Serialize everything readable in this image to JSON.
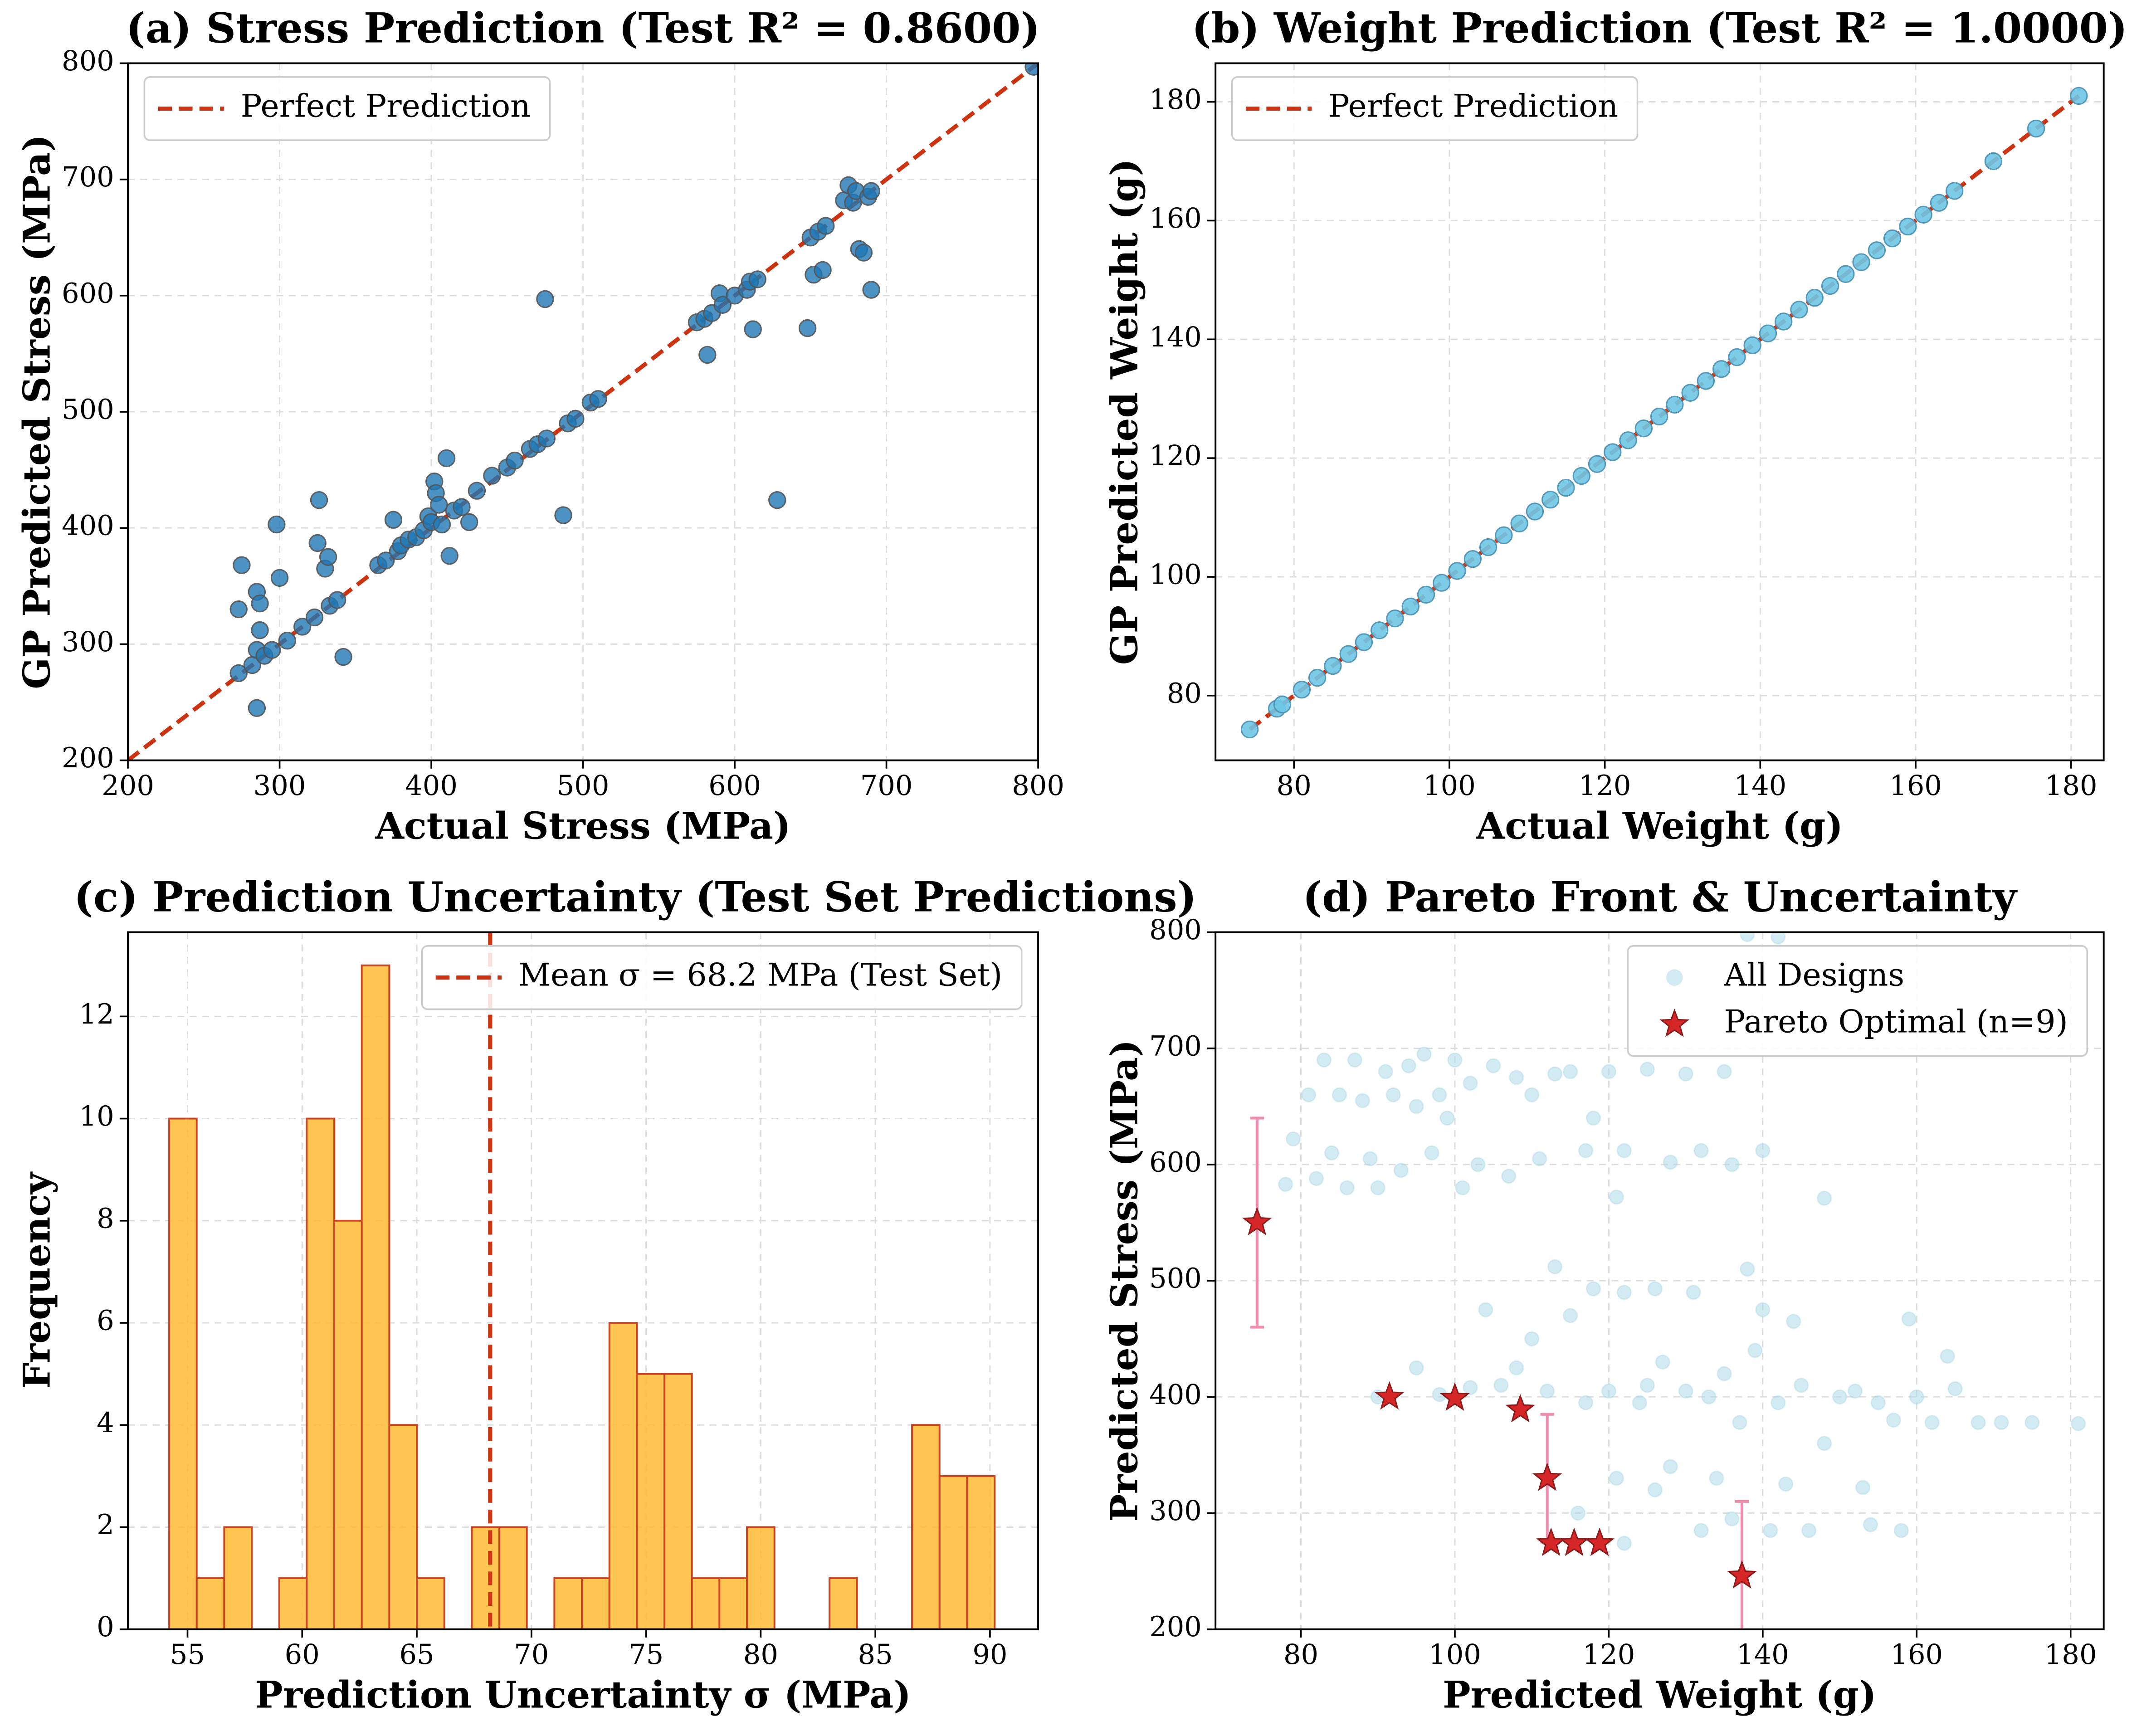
{
  "chart_data": [
    {
      "type": "scatter",
      "title": "(a) Stress Prediction (Test R² = 0.8600)",
      "xlabel": "Actual Stress (MPa)",
      "ylabel": "GP Predicted Stress (MPa)",
      "xlim": [
        200,
        800
      ],
      "ylim": [
        200,
        800
      ],
      "xticks": [
        200,
        300,
        400,
        500,
        600,
        700,
        800
      ],
      "yticks": [
        200,
        300,
        400,
        500,
        600,
        700,
        800
      ],
      "grid": true,
      "legend": "upper left",
      "reference_line": {
        "name": "Perfect Prediction",
        "color": "#cc3311",
        "x": [
          200,
          800
        ],
        "y": [
          200,
          800
        ]
      },
      "series": [
        {
          "color": "#1f77b4",
          "edge_color": "#555555",
          "alpha": 0.8,
          "x": [
            273,
            275,
            273,
            282,
            285,
            287,
            285,
            287,
            285,
            290,
            295,
            298,
            300,
            305,
            315,
            323,
            326,
            325,
            330,
            332,
            333,
            338,
            342,
            365,
            370,
            375,
            378,
            380,
            385,
            390,
            395,
            398,
            400,
            402,
            403,
            405,
            407,
            410,
            412,
            415,
            420,
            425,
            430,
            440,
            450,
            455,
            465,
            470,
            475,
            476,
            487,
            490,
            495,
            505,
            510,
            575,
            580,
            582,
            585,
            590,
            592,
            600,
            608,
            612,
            610,
            615,
            628,
            648,
            650,
            652,
            655,
            658,
            660,
            672,
            675,
            678,
            680,
            682,
            685,
            688,
            690,
            690,
            797
          ],
          "values": [
            275,
            368,
            330,
            282,
            345,
            335,
            295,
            312,
            245,
            290,
            295,
            403,
            357,
            303,
            315,
            323,
            424,
            387,
            365,
            375,
            333,
            338,
            289,
            368,
            372,
            407,
            380,
            385,
            390,
            392,
            398,
            410,
            405,
            440,
            430,
            420,
            403,
            460,
            376,
            415,
            418,
            405,
            432,
            445,
            452,
            458,
            468,
            472,
            597,
            477,
            411,
            490,
            494,
            508,
            511,
            577,
            580,
            549,
            585,
            602,
            592,
            600,
            605,
            571,
            612,
            614,
            424,
            572,
            650,
            618,
            655,
            622,
            660,
            682,
            695,
            680,
            690,
            640,
            637,
            685,
            605,
            690,
            797
          ]
        }
      ]
    },
    {
      "type": "scatter",
      "title": "(b) Weight Prediction (Test R² = 1.0000)",
      "xlabel": "Actual Weight (g)",
      "ylabel": "GP Predicted Weight (g)",
      "xlim": [
        69.9,
        184.2
      ],
      "ylim": [
        69.1,
        186.5
      ],
      "xticks": [
        80,
        100,
        120,
        140,
        160,
        180
      ],
      "yticks": [
        80,
        100,
        120,
        140,
        160,
        180
      ],
      "grid": true,
      "legend": "upper left",
      "reference_line": {
        "name": "Perfect Prediction",
        "color": "#cc3311",
        "x": [
          74.3,
          181
        ],
        "y": [
          74.3,
          181
        ]
      },
      "series": [
        {
          "color": "#6ec6e6",
          "edge_color": "#4a8fb0",
          "alpha": 0.9,
          "x": [
            74.3,
            77.8,
            78.5,
            81,
            83,
            85,
            87,
            89,
            91,
            93,
            95,
            97,
            99,
            101,
            103,
            105,
            107,
            109,
            111,
            113,
            115,
            117,
            119,
            121,
            123,
            125,
            127,
            129,
            131,
            133,
            135,
            137,
            139,
            141,
            143,
            145,
            147,
            149,
            151,
            153,
            155,
            157,
            159,
            161,
            163,
            165,
            170,
            175.5,
            181
          ],
          "values": [
            74.3,
            77.8,
            78.5,
            81,
            83,
            85,
            87,
            89,
            91,
            93,
            95,
            97,
            99,
            101,
            103,
            105,
            107,
            109,
            111,
            113,
            115,
            117,
            119,
            121,
            123,
            125,
            127,
            129,
            131,
            133,
            135,
            137,
            139,
            141,
            143,
            145,
            147,
            149,
            151,
            153,
            155,
            157,
            159,
            161,
            163,
            165,
            170,
            175.5,
            181
          ]
        }
      ]
    },
    {
      "type": "histogram",
      "title": "(c) Prediction Uncertainty (Test Set Predictions)",
      "xlabel": "Prediction Uncertainty σ (MPa)",
      "ylabel": "Frequency",
      "xlim": [
        52.4,
        92.1
      ],
      "ylim": [
        0,
        13.65
      ],
      "xticks": [
        55,
        60,
        65,
        70,
        75,
        80,
        85,
        90
      ],
      "yticks": [
        0,
        2,
        4,
        6,
        8,
        10,
        12
      ],
      "grid": true,
      "legend": "upper right",
      "color": "#ffbb33",
      "edge_color": "#cc4422",
      "bins": [
        54.2,
        55.4,
        56.6,
        57.8,
        59,
        60.2,
        61.4,
        62.6,
        63.8,
        65,
        66.2,
        67.4,
        68.6,
        69.8,
        71,
        72.2,
        73.4,
        74.6,
        75.8,
        77,
        78.2,
        79.4,
        80.6,
        81.8,
        83,
        84.2,
        85.4,
        86.6,
        87.8,
        89,
        90.2
      ],
      "counts": [
        10,
        1,
        2,
        0,
        1,
        10,
        8,
        13,
        4,
        1,
        0,
        2,
        2,
        0,
        1,
        1,
        6,
        5,
        5,
        1,
        1,
        2,
        0,
        0,
        1,
        0,
        0,
        4,
        3,
        3
      ],
      "mean_line": {
        "name": "Mean σ = 68.2 MPa (Test Set)",
        "value": 68.2,
        "color": "#cc3311"
      }
    },
    {
      "type": "scatter",
      "title": "(d) Pareto Front & Uncertainty",
      "xlabel": "Predicted Weight (g)",
      "ylabel": "Predicted Stress (MPa)",
      "xlim": [
        68.9,
        184.3
      ],
      "ylim": [
        200,
        800
      ],
      "xticks": [
        80,
        100,
        120,
        140,
        160,
        180
      ],
      "yticks": [
        200,
        300,
        400,
        500,
        600,
        700,
        800
      ],
      "grid": true,
      "legend": "upper right",
      "series": [
        {
          "name": "All Designs",
          "color": "#add8e6",
          "edge_color": "#add8e6",
          "alpha": 0.55,
          "x": [
            78,
            79,
            81,
            82,
            83,
            84,
            85,
            86,
            87,
            88,
            89,
            90,
            91,
            92,
            93,
            94,
            95,
            96,
            97,
            98,
            99,
            100,
            101,
            102,
            103,
            105,
            107,
            108,
            110,
            111,
            113,
            115,
            117,
            118,
            120,
            121,
            122,
            125,
            128,
            130,
            132,
            135,
            136,
            140,
            142,
            138,
            148,
            90,
            95,
            98,
            102,
            104,
            106,
            108,
            110,
            112,
            113,
            115,
            117,
            118,
            120,
            121,
            122,
            124,
            125,
            126,
            127,
            128,
            130,
            131,
            132,
            133,
            134,
            135,
            136,
            137,
            138,
            139,
            140,
            141,
            142,
            143,
            144,
            145,
            146,
            148,
            150,
            152,
            153,
            154,
            155,
            157,
            158,
            159,
            160,
            162,
            164,
            165,
            168,
            171,
            175,
            181,
            116,
            122,
            126
          ],
          "values": [
            583,
            622,
            660,
            588,
            690,
            610,
            660,
            580,
            690,
            655,
            605,
            580,
            680,
            660,
            595,
            685,
            650,
            695,
            610,
            660,
            640,
            690,
            580,
            670,
            600,
            685,
            590,
            675,
            660,
            605,
            678,
            680,
            612,
            640,
            680,
            572,
            612,
            682,
            602,
            678,
            612,
            680,
            600,
            612,
            796,
            798,
            571,
            400,
            425,
            402,
            408,
            475,
            410,
            425,
            450,
            405,
            512,
            470,
            395,
            493,
            405,
            330,
            490,
            395,
            410,
            493,
            430,
            340,
            405,
            490,
            285,
            400,
            330,
            420,
            295,
            378,
            510,
            440,
            475,
            285,
            395,
            325,
            465,
            410,
            285,
            360,
            400,
            405,
            322,
            290,
            395,
            380,
            285,
            467,
            400,
            378,
            435,
            407,
            378,
            378,
            378,
            377,
            300,
            274,
            320
          ]
        },
        {
          "name": "Pareto Optimal (n=9)",
          "color": "#d62728",
          "edge_color": "#8b1a1a",
          "alpha": 1,
          "marker": "star",
          "error_color": "#f08cb0",
          "x": [
            74.3,
            91.5,
            100,
            108.5,
            112,
            112.5,
            115.5,
            118.8,
            137.3
          ],
          "values": [
            550,
            400,
            399,
            389,
            330,
            274,
            274,
            274,
            246
          ],
          "errors": [
            90,
            null,
            null,
            null,
            55,
            null,
            null,
            null,
            64
          ]
        }
      ]
    }
  ]
}
